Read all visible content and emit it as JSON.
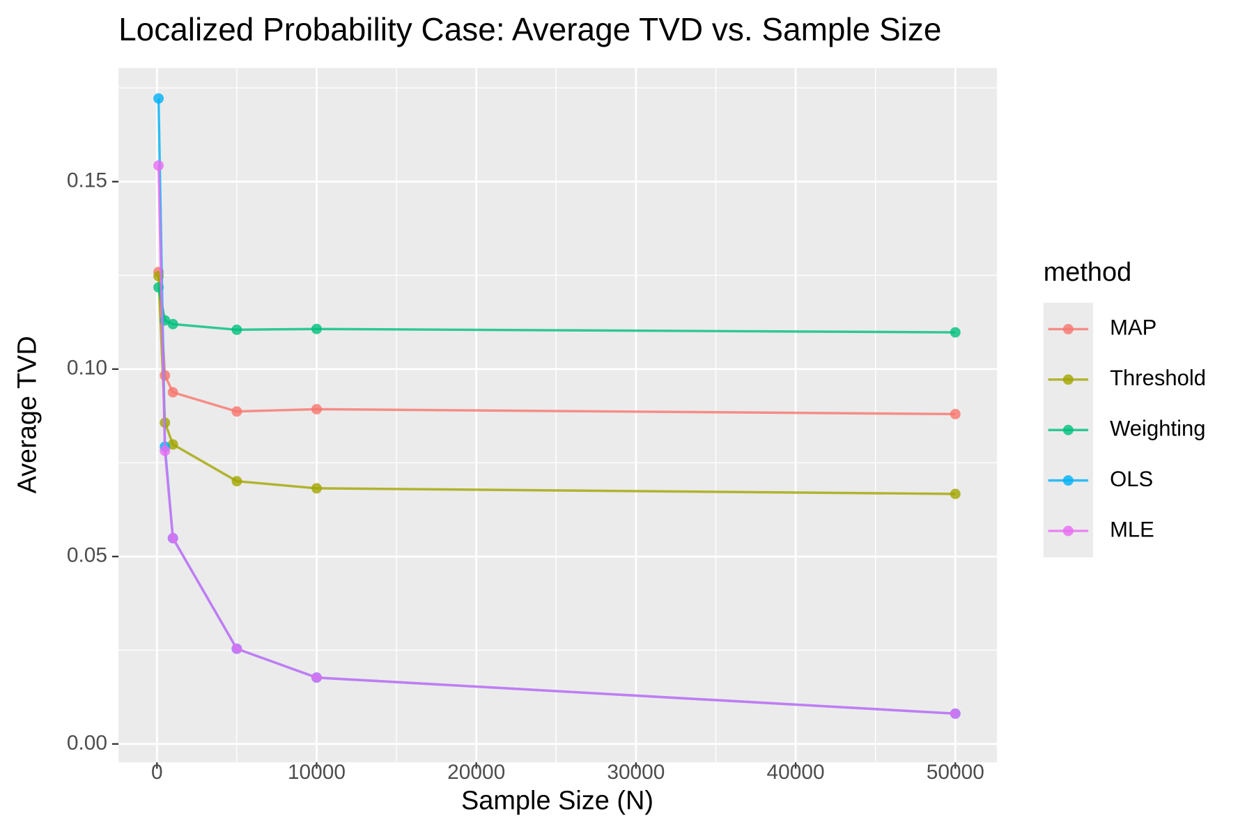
{
  "chart_data": {
    "type": "line",
    "title": "Localized Probability Case: Average TVD vs. Sample Size",
    "x_label": "Sample Size (N)",
    "y_label": "Average TVD",
    "legend_title": "method",
    "legend_position": "right",
    "x": [
      100,
      500,
      1000,
      5000,
      10000,
      50000
    ],
    "series": [
      {
        "name": "MAP",
        "color": "#F8766D",
        "values": [
          0.1259,
          0.0983,
          0.0938,
          0.0887,
          0.0893,
          0.088
        ]
      },
      {
        "name": "Threshold",
        "color": "#A3A500",
        "values": [
          0.1248,
          0.0857,
          0.0799,
          0.0701,
          0.0682,
          0.0667
        ]
      },
      {
        "name": "Weighting",
        "color": "#00BF7D",
        "values": [
          0.1218,
          0.113,
          0.112,
          0.1105,
          0.1107,
          0.1098
        ]
      },
      {
        "name": "OLS",
        "color": "#00B0F6",
        "values": [
          0.1722,
          0.0793,
          0.0549,
          0.0254,
          0.0177,
          0.0081
        ]
      },
      {
        "name": "MLE",
        "color": "#E76BF3",
        "values": [
          0.1543,
          0.0782,
          0.0549,
          0.0254,
          0.0177,
          0.0081
        ]
      }
    ],
    "xlim": [
      -2407,
      52607
    ],
    "ylim": [
      -0.0049,
      0.1803
    ],
    "xticks": [
      0,
      10000,
      20000,
      30000,
      40000,
      50000
    ],
    "yticks": [
      {
        "value": 0,
        "label": "0.00"
      },
      0.05,
      {
        "value": 0.1,
        "label": "0.10"
      },
      0.15
    ],
    "grid": true,
    "minor_grid": true
  }
}
